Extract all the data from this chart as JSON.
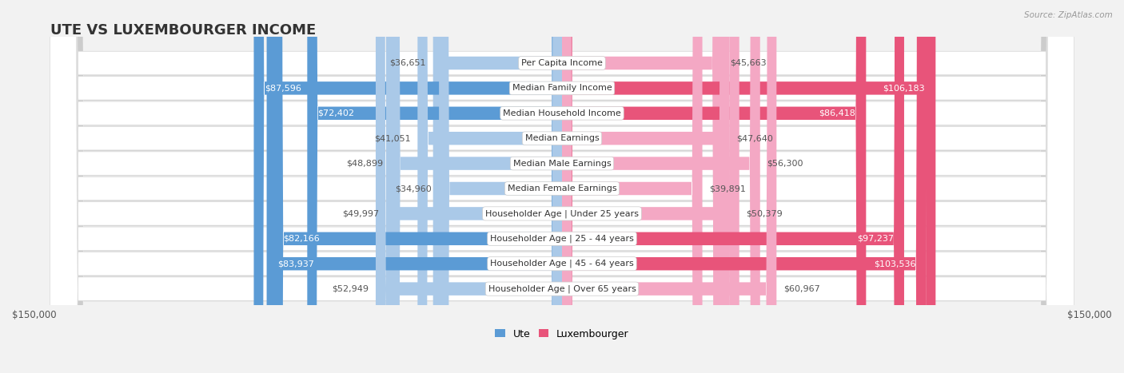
{
  "title": "UTE VS LUXEMBOURGER INCOME",
  "source": "Source: ZipAtlas.com",
  "categories": [
    "Per Capita Income",
    "Median Family Income",
    "Median Household Income",
    "Median Earnings",
    "Median Male Earnings",
    "Median Female Earnings",
    "Householder Age | Under 25 years",
    "Householder Age | 25 - 44 years",
    "Householder Age | 45 - 64 years",
    "Householder Age | Over 65 years"
  ],
  "ute_values": [
    36651,
    87596,
    72402,
    41051,
    48899,
    34960,
    49997,
    82166,
    83937,
    52949
  ],
  "lux_values": [
    45663,
    106183,
    86418,
    47640,
    56300,
    39891,
    50379,
    97237,
    103536,
    60967
  ],
  "ute_labels": [
    "$36,651",
    "$87,596",
    "$72,402",
    "$41,051",
    "$48,899",
    "$34,960",
    "$49,997",
    "$82,166",
    "$83,937",
    "$52,949"
  ],
  "lux_labels": [
    "$45,663",
    "$106,183",
    "$86,418",
    "$47,640",
    "$56,300",
    "$39,891",
    "$50,379",
    "$97,237",
    "$103,536",
    "$60,967"
  ],
  "ute_color_light": "#aac9e8",
  "ute_color_dark": "#5b9bd5",
  "lux_color_light": "#f4a8c4",
  "lux_color_dark": "#e8547a",
  "ute_threshold": 60000,
  "lux_threshold": 70000,
  "max_val": 150000,
  "title_fontsize": 13,
  "label_fontsize": 8,
  "category_fontsize": 8,
  "axis_label_fontsize": 8.5
}
